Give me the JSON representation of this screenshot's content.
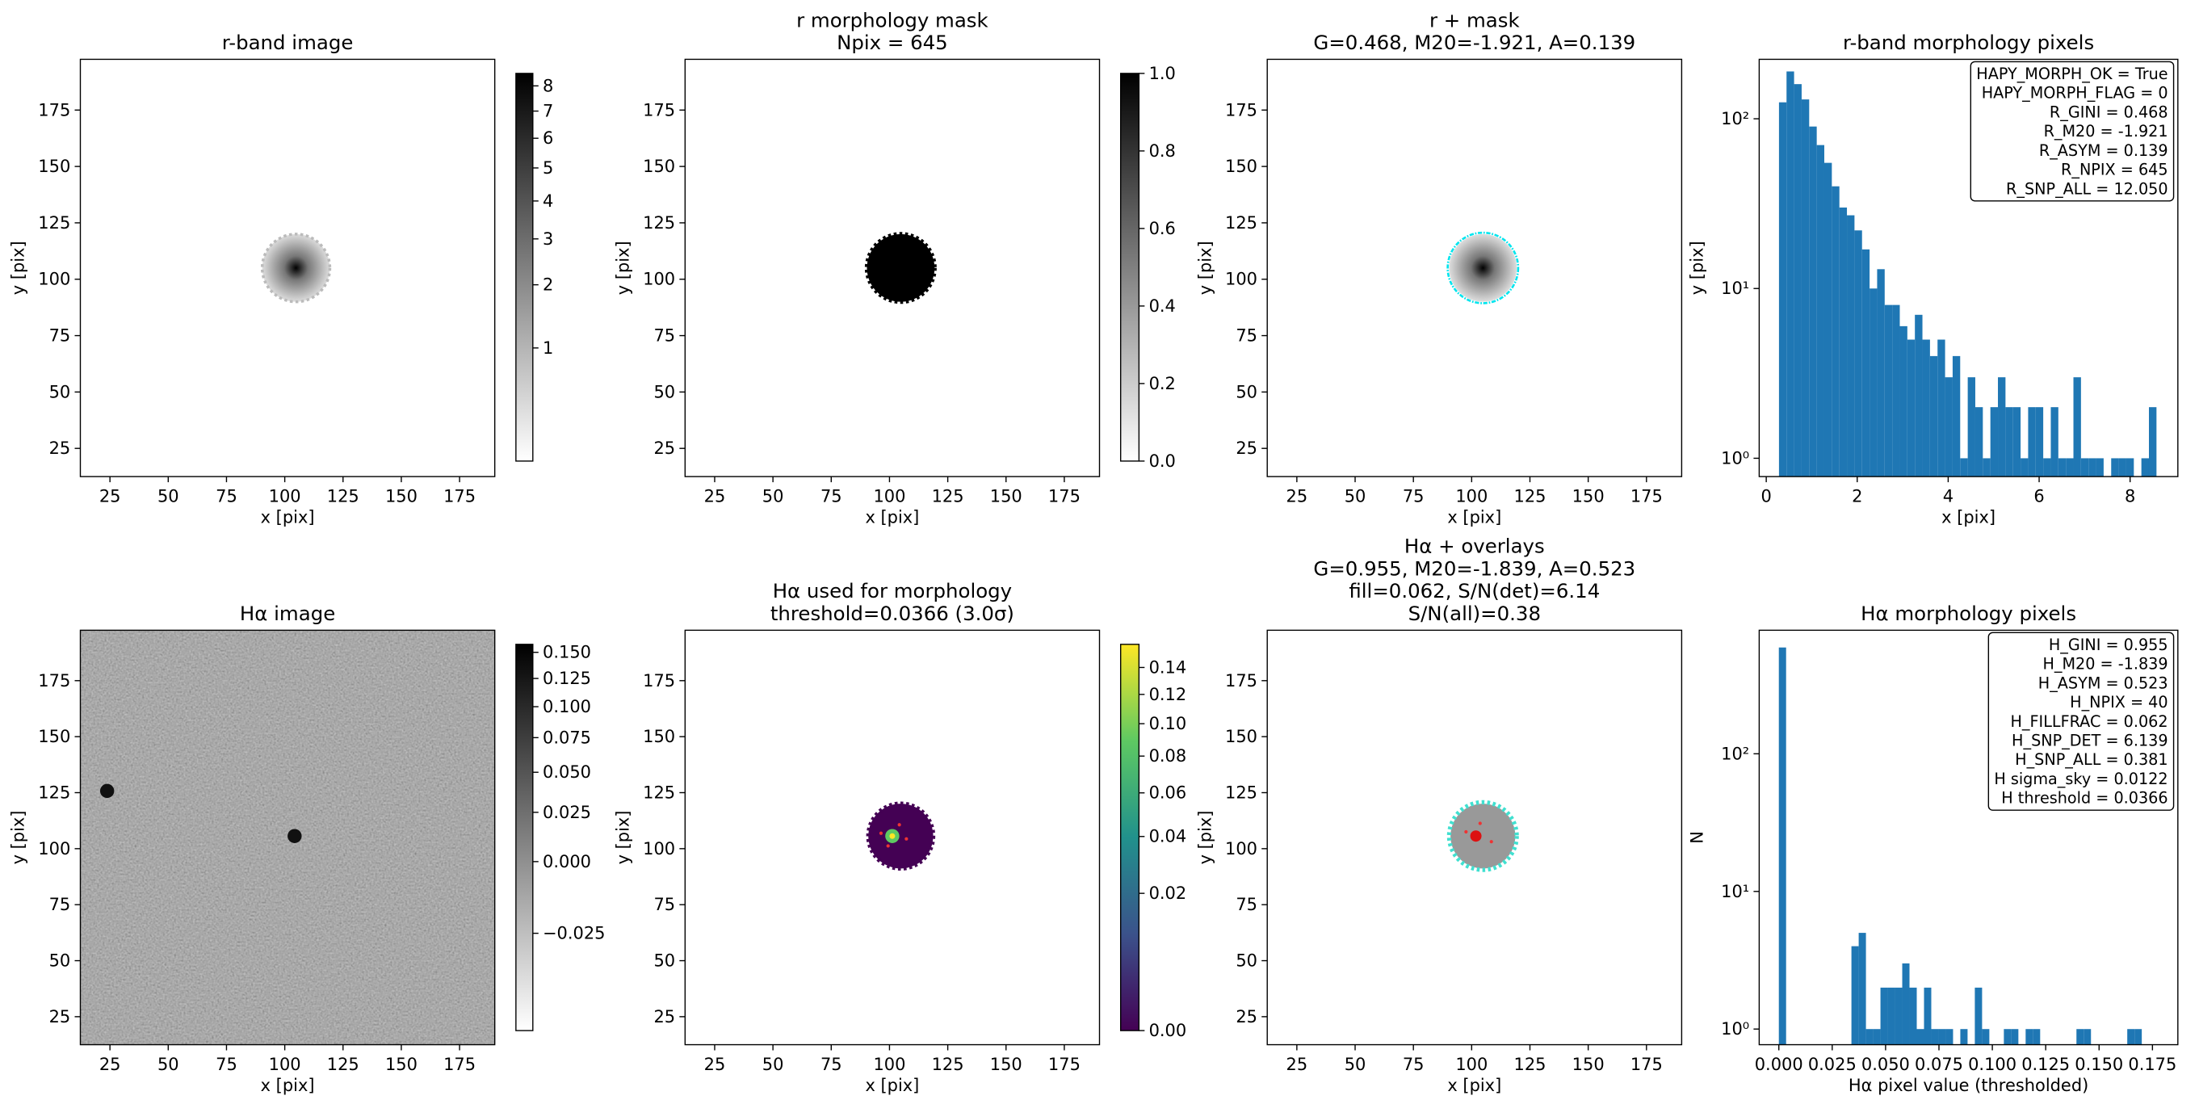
{
  "chart_data": [
    {
      "type": "image",
      "title": [
        "r-band image"
      ],
      "xlabel": "x [pix]",
      "ylabel": "y [pix]",
      "xlim": [
        12.3,
        190.1
      ],
      "ylim": [
        12.5,
        197.5
      ],
      "xticks": [
        25,
        50,
        75,
        100,
        125,
        150,
        175
      ],
      "yticks": [
        25,
        50,
        75,
        100,
        125,
        150,
        175
      ],
      "colorbar": {
        "cmap": "gray_r",
        "scale": "sqrt",
        "clim": [
          0.3,
          8.52
        ],
        "ticks": [
          1,
          2,
          3,
          4,
          5,
          6,
          7,
          8
        ]
      }
    },
    {
      "type": "image",
      "title": [
        "r morphology mask",
        "Npix = 645"
      ],
      "xlabel": "x [pix]",
      "ylabel": "y [pix]",
      "xlim": [
        12.3,
        190.1
      ],
      "ylim": [
        12.5,
        197.5
      ],
      "xticks": [
        25,
        50,
        75,
        100,
        125,
        150,
        175
      ],
      "yticks": [
        25,
        50,
        75,
        100,
        125,
        150,
        175
      ],
      "colorbar": {
        "cmap": "gray_r",
        "scale": "linear",
        "clim": [
          0,
          1
        ],
        "ticks": [
          {
            "value": 0,
            "label": "0.0"
          },
          {
            "value": 0.2,
            "label": "0.2"
          },
          {
            "value": 0.4,
            "label": "0.4"
          },
          {
            "value": 0.6,
            "label": "0.6"
          },
          {
            "value": 0.8,
            "label": "0.8"
          },
          {
            "value": 1,
            "label": "1.0"
          }
        ]
      }
    },
    {
      "type": "image",
      "title": [
        "r + mask",
        "G=0.468, M20=-1.921, A=0.139"
      ],
      "xlabel": "x [pix]",
      "ylabel": "y [pix]",
      "xlim": [
        12.3,
        190.1
      ],
      "ylim": [
        12.5,
        197.5
      ],
      "xticks": [
        25,
        50,
        75,
        100,
        125,
        150,
        175
      ],
      "yticks": [
        25,
        50,
        75,
        100,
        125,
        150,
        175
      ]
    },
    {
      "type": "histogram",
      "title": [
        "r-band morphology pixels"
      ],
      "xlabel": "x [pix]",
      "ylabel": "y [pix]",
      "color": "#1f77b4",
      "ylog": true,
      "xlim": [
        -0.155,
        9.05
      ],
      "ylim": [
        0.78,
        224
      ],
      "xticks": [
        0,
        2,
        4,
        6,
        8
      ],
      "yticks": [
        {
          "value": 1,
          "label": "10⁰"
        },
        {
          "value": 10,
          "label": "10¹"
        },
        {
          "value": 100,
          "label": "10²"
        }
      ],
      "bins": [
        0.28,
        0.446,
        0.612,
        0.778,
        0.944,
        1.11,
        1.276,
        1.442,
        1.608,
        1.774,
        1.94,
        2.106,
        2.272,
        2.438,
        2.604,
        2.77,
        2.936,
        3.102,
        3.268,
        3.434,
        3.6,
        3.766,
        3.932,
        4.098,
        4.264,
        4.43,
        4.596,
        4.762,
        4.928,
        5.094,
        5.26,
        5.426,
        5.592,
        5.758,
        5.924,
        6.09,
        6.256,
        6.422,
        6.588,
        6.754,
        6.92,
        7.086,
        7.252,
        7.418,
        7.584,
        7.75,
        7.916,
        8.082,
        8.248,
        8.414,
        8.58
      ],
      "values": [
        125,
        190,
        160,
        130,
        90,
        70,
        55,
        40,
        30,
        27,
        22,
        17,
        10,
        13,
        8,
        8,
        6,
        5,
        7,
        5,
        4,
        5,
        3,
        4,
        1,
        3,
        2,
        1,
        2,
        3,
        2,
        2,
        1,
        2,
        2,
        1,
        2,
        1,
        1,
        3,
        1,
        1,
        1,
        0,
        1,
        1,
        1,
        0,
        1,
        2
      ],
      "annotation": [
        "HAPY_MORPH_OK = True",
        "HAPY_MORPH_FLAG = 0",
        "R_GINI = 0.468",
        "R_M20 = -1.921",
        "R_ASYM = 0.139",
        "R_NPIX = 645",
        "R_SNP_ALL = 12.050"
      ]
    },
    {
      "type": "image",
      "title": [
        "Hα image"
      ],
      "xlabel": "x [pix]",
      "ylabel": "y [pix]",
      "xlim": [
        12.3,
        190.1
      ],
      "ylim": [
        12.5,
        197.5
      ],
      "xticks": [
        25,
        50,
        75,
        100,
        125,
        150,
        175
      ],
      "yticks": [
        25,
        50,
        75,
        100,
        125,
        150,
        175
      ],
      "colorbar": {
        "cmap": "gray_r",
        "scale": "sqrt",
        "clim": [
          -0.0374,
          0.158
        ],
        "ticks": [
          {
            "value": -0.025,
            "label": "−0.025"
          },
          {
            "value": 0,
            "label": "0.000"
          },
          {
            "value": 0.025,
            "label": "0.025"
          },
          {
            "value": 0.05,
            "label": "0.050"
          },
          {
            "value": 0.075,
            "label": "0.075"
          },
          {
            "value": 0.1,
            "label": "0.100"
          },
          {
            "value": 0.125,
            "label": "0.125"
          },
          {
            "value": 0.15,
            "label": "0.150"
          }
        ]
      }
    },
    {
      "type": "image",
      "title": [
        "Hα used for morphology",
        "threshold=0.0366 (3.0σ)"
      ],
      "xlabel": "x [pix]",
      "ylabel": "y [pix]",
      "xlim": [
        12.3,
        190.1
      ],
      "ylim": [
        12.5,
        197.5
      ],
      "xticks": [
        25,
        50,
        75,
        100,
        125,
        150,
        175
      ],
      "yticks": [
        25,
        50,
        75,
        100,
        125,
        150,
        175
      ],
      "colorbar": {
        "cmap": "viridis",
        "scale": "sqrt",
        "clim": [
          0,
          0.1584
        ],
        "ticks": [
          {
            "value": 0,
            "label": "0.00"
          },
          {
            "value": 0.02,
            "label": "0.02"
          },
          {
            "value": 0.04,
            "label": "0.04"
          },
          {
            "value": 0.06,
            "label": "0.06"
          },
          {
            "value": 0.08,
            "label": "0.08"
          },
          {
            "value": 0.1,
            "label": "0.10"
          },
          {
            "value": 0.12,
            "label": "0.12"
          },
          {
            "value": 0.14,
            "label": "0.14"
          }
        ]
      }
    },
    {
      "type": "image",
      "title": [
        "Hα + overlays",
        "G=0.955, M20=-1.839, A=0.523",
        "fill=0.062, S/N(det)=6.14",
        "S/N(all)=0.38"
      ],
      "xlabel": "x [pix]",
      "ylabel": "y [pix]",
      "xlim": [
        12.3,
        190.1
      ],
      "ylim": [
        12.5,
        197.5
      ],
      "xticks": [
        25,
        50,
        75,
        100,
        125,
        150,
        175
      ],
      "yticks": [
        25,
        50,
        75,
        100,
        125,
        150,
        175
      ]
    },
    {
      "type": "histogram",
      "title": [
        "Hα morphology pixels"
      ],
      "xlabel": "Hα pixel value (thresholded)",
      "ylabel": "N",
      "color": "#1f77b4",
      "ylog": true,
      "xlim": [
        -0.0092,
        0.1869
      ],
      "ylim": [
        0.77,
        790
      ],
      "xticks": [
        {
          "value": 0,
          "label": "0.000"
        },
        {
          "value": 0.025,
          "label": "0.025"
        },
        {
          "value": 0.05,
          "label": "0.050"
        },
        {
          "value": 0.075,
          "label": "0.075"
        },
        {
          "value": 0.1,
          "label": "0.100"
        },
        {
          "value": 0.125,
          "label": "0.125"
        },
        {
          "value": 0.15,
          "label": "0.150"
        },
        {
          "value": 0.175,
          "label": "0.175"
        }
      ],
      "yticks": [
        {
          "value": 1,
          "label": "10⁰"
        },
        {
          "value": 10,
          "label": "10¹"
        },
        {
          "value": 100,
          "label": "10²"
        }
      ],
      "bins": [
        0,
        0.0034,
        0.0068,
        0.0102,
        0.0136,
        0.017,
        0.0204,
        0.0238,
        0.0272,
        0.0306,
        0.034,
        0.0374,
        0.0408,
        0.0442,
        0.0476,
        0.051,
        0.0544,
        0.0578,
        0.0612,
        0.0646,
        0.068,
        0.0714,
        0.0748,
        0.0782,
        0.0816,
        0.085,
        0.0884,
        0.0918,
        0.0952,
        0.0986,
        0.102,
        0.1054,
        0.1088,
        0.1122,
        0.1156,
        0.119,
        0.1224,
        0.1258,
        0.1292,
        0.1326,
        0.136,
        0.1394,
        0.1428,
        0.1462,
        0.1496,
        0.153,
        0.1564,
        0.1598,
        0.1632,
        0.1666,
        0.17
      ],
      "values": [
        592,
        0,
        0,
        0,
        0,
        0,
        0,
        0,
        0,
        0,
        4,
        5,
        1,
        1,
        2,
        2,
        2,
        3,
        2,
        1,
        2,
        1,
        1,
        1,
        0,
        1,
        0,
        2,
        1,
        0,
        0,
        1,
        1,
        0,
        1,
        1,
        0,
        0,
        0,
        0,
        0,
        1,
        1,
        0,
        0,
        0,
        0,
        0,
        1,
        1
      ],
      "annotation": [
        "H_GINI = 0.955",
        "H_M20 = -1.839",
        "H_ASYM = 0.523",
        "H_NPIX = 40",
        "H_FILLFRAC = 0.062",
        "H_SNP_DET = 6.139",
        "H_SNP_ALL = 0.381",
        "H sigma_sky = 0.0122",
        "H threshold = 0.0366"
      ]
    }
  ]
}
